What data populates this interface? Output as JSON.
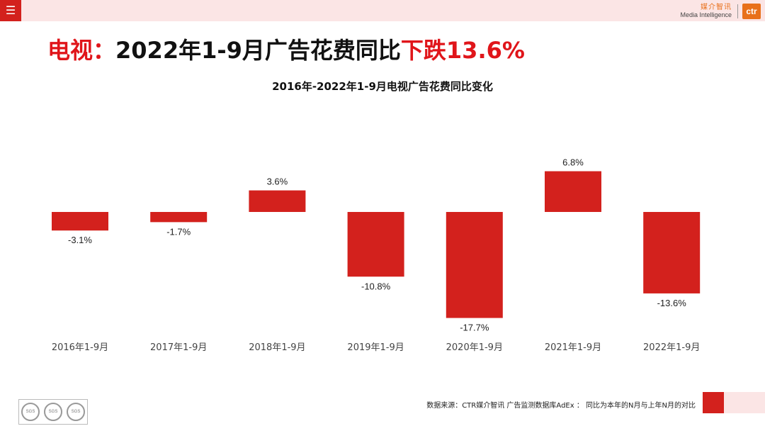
{
  "header": {
    "menu_icon": "menu-icon",
    "brand_cn": "媒介智讯",
    "brand_en": "Media Intelligence",
    "logo_text": "ctr",
    "brand_color": "#e8701a"
  },
  "headline": {
    "prefix": "电视：",
    "middle": "2022年1-9月广告花费同比",
    "highlight": "下跌13.6%",
    "accent_color": "#e0151a"
  },
  "chart_data": {
    "type": "bar",
    "title": "2016年-2022年1-9月电视广告花费同比变化",
    "categories": [
      "2016年1-9月",
      "2017年1-9月",
      "2018年1-9月",
      "2019年1-9月",
      "2020年1-9月",
      "2021年1-9月",
      "2022年1-9月"
    ],
    "values": [
      -3.1,
      -1.7,
      3.6,
      -10.8,
      -17.7,
      6.8,
      -13.6
    ],
    "data_labels": [
      "-3.1%",
      "-1.7%",
      "3.6%",
      "-10.8%",
      "-17.7%",
      "6.8%",
      "-13.6%"
    ],
    "xlabel": "",
    "ylabel": "",
    "ylim": [
      -20,
      10
    ],
    "grid": false,
    "bar_color": "#d3211d"
  },
  "footer": {
    "source": "数据来源：CTR媒介智讯 广告监测数据库AdEx  ：  同比为本年的N月与上年N月的对比",
    "seal_text": "SGS"
  }
}
